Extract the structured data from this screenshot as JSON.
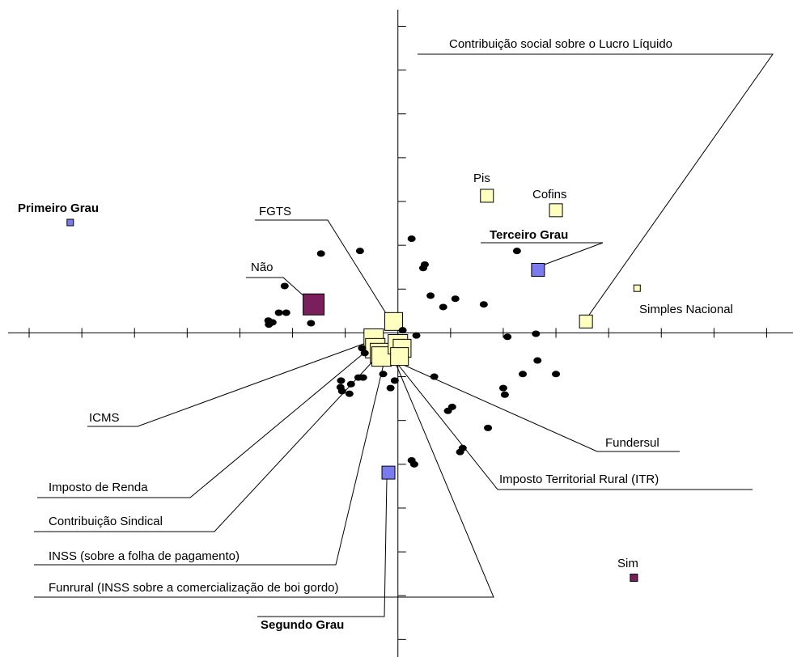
{
  "chart_data": {
    "type": "scatter",
    "xlim": [
      -7.4,
      7.5
    ],
    "ylim": [
      -7.4,
      7.6
    ],
    "xticks": [
      -7,
      -6,
      -5,
      -4,
      -3,
      -2,
      -1,
      1,
      2,
      3,
      4,
      5,
      6,
      7
    ],
    "yticks": [
      -7,
      -6,
      -5,
      -4,
      -3,
      -2,
      -1,
      1,
      2,
      3,
      4,
      5,
      6,
      7
    ],
    "series": [
      {
        "color": "#ffffc0",
        "labels": [
          "FGTS",
          "Pis",
          "Cofins",
          "Simples Nacional",
          "Contribuição social sobre o Lucro Líquido",
          "ICMS",
          "Imposto de Renda",
          "Contribuição Sindical",
          "INSS (sobre a folha de pagamento)",
          "Funrural (INSS sobre a comercialização de boi gordo)",
          "Fundersul",
          "Imposto Territorial Rural (ITR)"
        ],
        "x": [
          -0.08,
          1.69,
          3.0,
          4.54,
          3.57,
          -0.46,
          -0.43,
          -0.34,
          -0.31,
          0.0,
          0.08,
          0.03
        ],
        "y": [
          0.26,
          3.13,
          2.8,
          1.02,
          0.26,
          -0.13,
          -0.35,
          -0.46,
          -0.54,
          -0.26,
          -0.35,
          -0.54
        ],
        "sizes": [
          22,
          16,
          16,
          8,
          16,
          24,
          24,
          24,
          24,
          24,
          22,
          22
        ]
      },
      {
        "color": "#7b7bf0",
        "bold": true,
        "labels": [
          "Primeiro Grau",
          "Terceiro Grau",
          "Segundo Grau"
        ],
        "x": [
          -6.22,
          2.66,
          -0.18
        ],
        "y": [
          2.52,
          1.44,
          -3.19
        ],
        "sizes": [
          8,
          16,
          16
        ]
      },
      {
        "color": "#7b1f5c",
        "labels": [
          "Não",
          "Sim"
        ],
        "x": [
          -1.6,
          4.48
        ],
        "y": [
          0.65,
          -5.59
        ],
        "sizes": [
          26,
          9
        ]
      },
      {
        "color": "#000000",
        "x": [
          0.26,
          0.51,
          0.48,
          -0.72,
          -1.46,
          -2.15,
          -2.26,
          -2.12,
          -2.46,
          -2.45,
          -2.38,
          -1.65,
          0.62,
          0.86,
          1.09,
          1.63,
          2.26,
          2.62,
          2.08,
          0.35,
          0.69,
          2.0,
          2.03,
          2.37,
          2.65,
          3.0,
          1.03,
          0.95,
          1.71,
          1.23,
          1.18,
          0.26,
          0.31,
          -1.08,
          -1.09,
          -1.06,
          -0.92,
          -0.89,
          -0.75,
          -0.66,
          -0.28,
          -0.06,
          -0.14,
          -0.68,
          -0.63,
          0.09
        ],
        "y": [
          2.15,
          1.56,
          1.48,
          1.87,
          1.81,
          1.07,
          0.46,
          0.46,
          0.28,
          0.19,
          0.24,
          0.22,
          0.85,
          0.59,
          0.78,
          0.65,
          1.87,
          -0.02,
          -0.09,
          -0.06,
          -1.0,
          -1.26,
          -1.41,
          -0.94,
          -0.63,
          -0.94,
          -1.69,
          -1.78,
          -2.17,
          -2.63,
          -2.72,
          -2.91,
          -3.0,
          -1.09,
          -1.24,
          -1.33,
          -1.39,
          -1.17,
          -1.02,
          -1.02,
          -0.94,
          -1.09,
          -1.26,
          -0.35,
          -0.46,
          0.06
        ]
      }
    ]
  }
}
